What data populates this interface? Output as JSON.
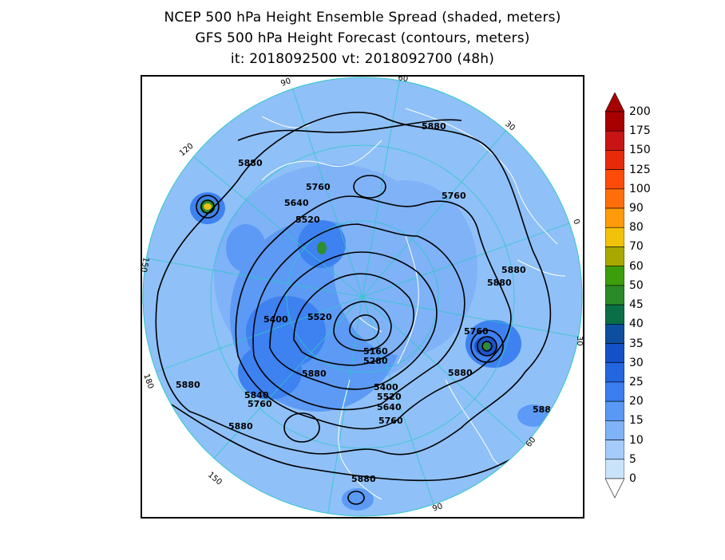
{
  "titles": {
    "line1": "NCEP 500 hPa Height Ensemble Spread (shaded, meters)",
    "line2": "GFS 500 hPa Height Forecast (contours, meters)",
    "line3": "it: 2018092500      vt: 2018092700 (48h)"
  },
  "colorbar": {
    "levels": [
      "200",
      "175",
      "150",
      "125",
      "100",
      "90",
      "80",
      "70",
      "60",
      "50",
      "45",
      "40",
      "35",
      "30",
      "25",
      "20",
      "15",
      "10",
      "5",
      "0"
    ],
    "colors": [
      "#a80000",
      "#c81414",
      "#e62a0a",
      "#ff4b0a",
      "#ff6e0a",
      "#ff9a0a",
      "#f2c20a",
      "#a8a800",
      "#3c9e0a",
      "#2a8a28",
      "#0a6e46",
      "#0d4f9e",
      "#1450c8",
      "#2366e0",
      "#3a7ef0",
      "#5a98f5",
      "#7fb2f7",
      "#a4cbf9",
      "#c9e3fb"
    ]
  },
  "meridians": [
    "60",
    "30",
    "0",
    "30",
    "60",
    "90",
    "120",
    "150",
    "180",
    "150",
    "120",
    "90"
  ],
  "contour_labels": [
    "5880",
    "5880",
    "5760",
    "5760",
    "5640",
    "5520",
    "5880",
    "5880",
    "5400",
    "5520",
    "5160",
    "5280",
    "5760",
    "5880",
    "5880",
    "5840",
    "5760",
    "5880",
    "5400",
    "5520",
    "5640",
    "5760",
    "5880",
    "5880"
  ]
}
